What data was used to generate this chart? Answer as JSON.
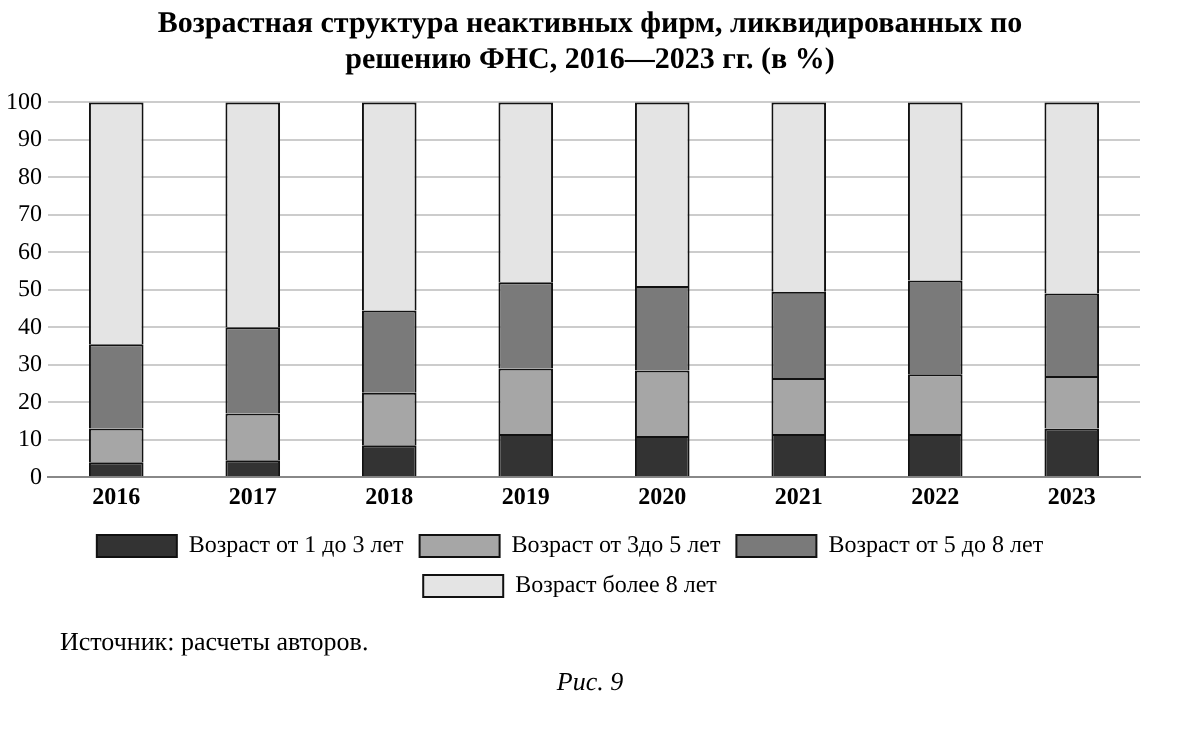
{
  "chart_data": {
    "type": "bar",
    "title": "Возрастная структура неактивных фирм, ликвидированных по решению ФНС, 2016—2023 гг. (в %)",
    "stacked": true,
    "categories": [
      "2016",
      "2017",
      "2018",
      "2019",
      "2020",
      "2021",
      "2022",
      "2023"
    ],
    "series": [
      {
        "name": "Возраст от 1 до 3 лет",
        "color": "#333333",
        "values": [
          4,
          4.5,
          8.5,
          11.5,
          11,
          11.5,
          11.5,
          13
        ]
      },
      {
        "name": "Возраст от 3до 5 лет",
        "color": "#a6a6a6",
        "values": [
          9,
          12.5,
          14,
          17.5,
          17.5,
          15,
          16,
          14
        ]
      },
      {
        "name": "Возраст от 5 до 8 лет",
        "color": "#7a7a7a",
        "values": [
          22.5,
          23,
          22,
          23,
          22.5,
          23,
          25,
          22
        ]
      },
      {
        "name": "Возраст более 8 лет",
        "color": "#e4e4e4",
        "values": [
          64.5,
          60,
          55.5,
          48,
          49,
          50.5,
          47.5,
          51
        ]
      }
    ],
    "ylim": [
      0,
      100
    ],
    "yticks": [
      0,
      10,
      20,
      30,
      40,
      50,
      60,
      70,
      80,
      90,
      100
    ],
    "grid": "y",
    "legend": "bottom",
    "annotations": [
      "Источник: расчеты авторов.",
      "Рис. 9"
    ]
  }
}
